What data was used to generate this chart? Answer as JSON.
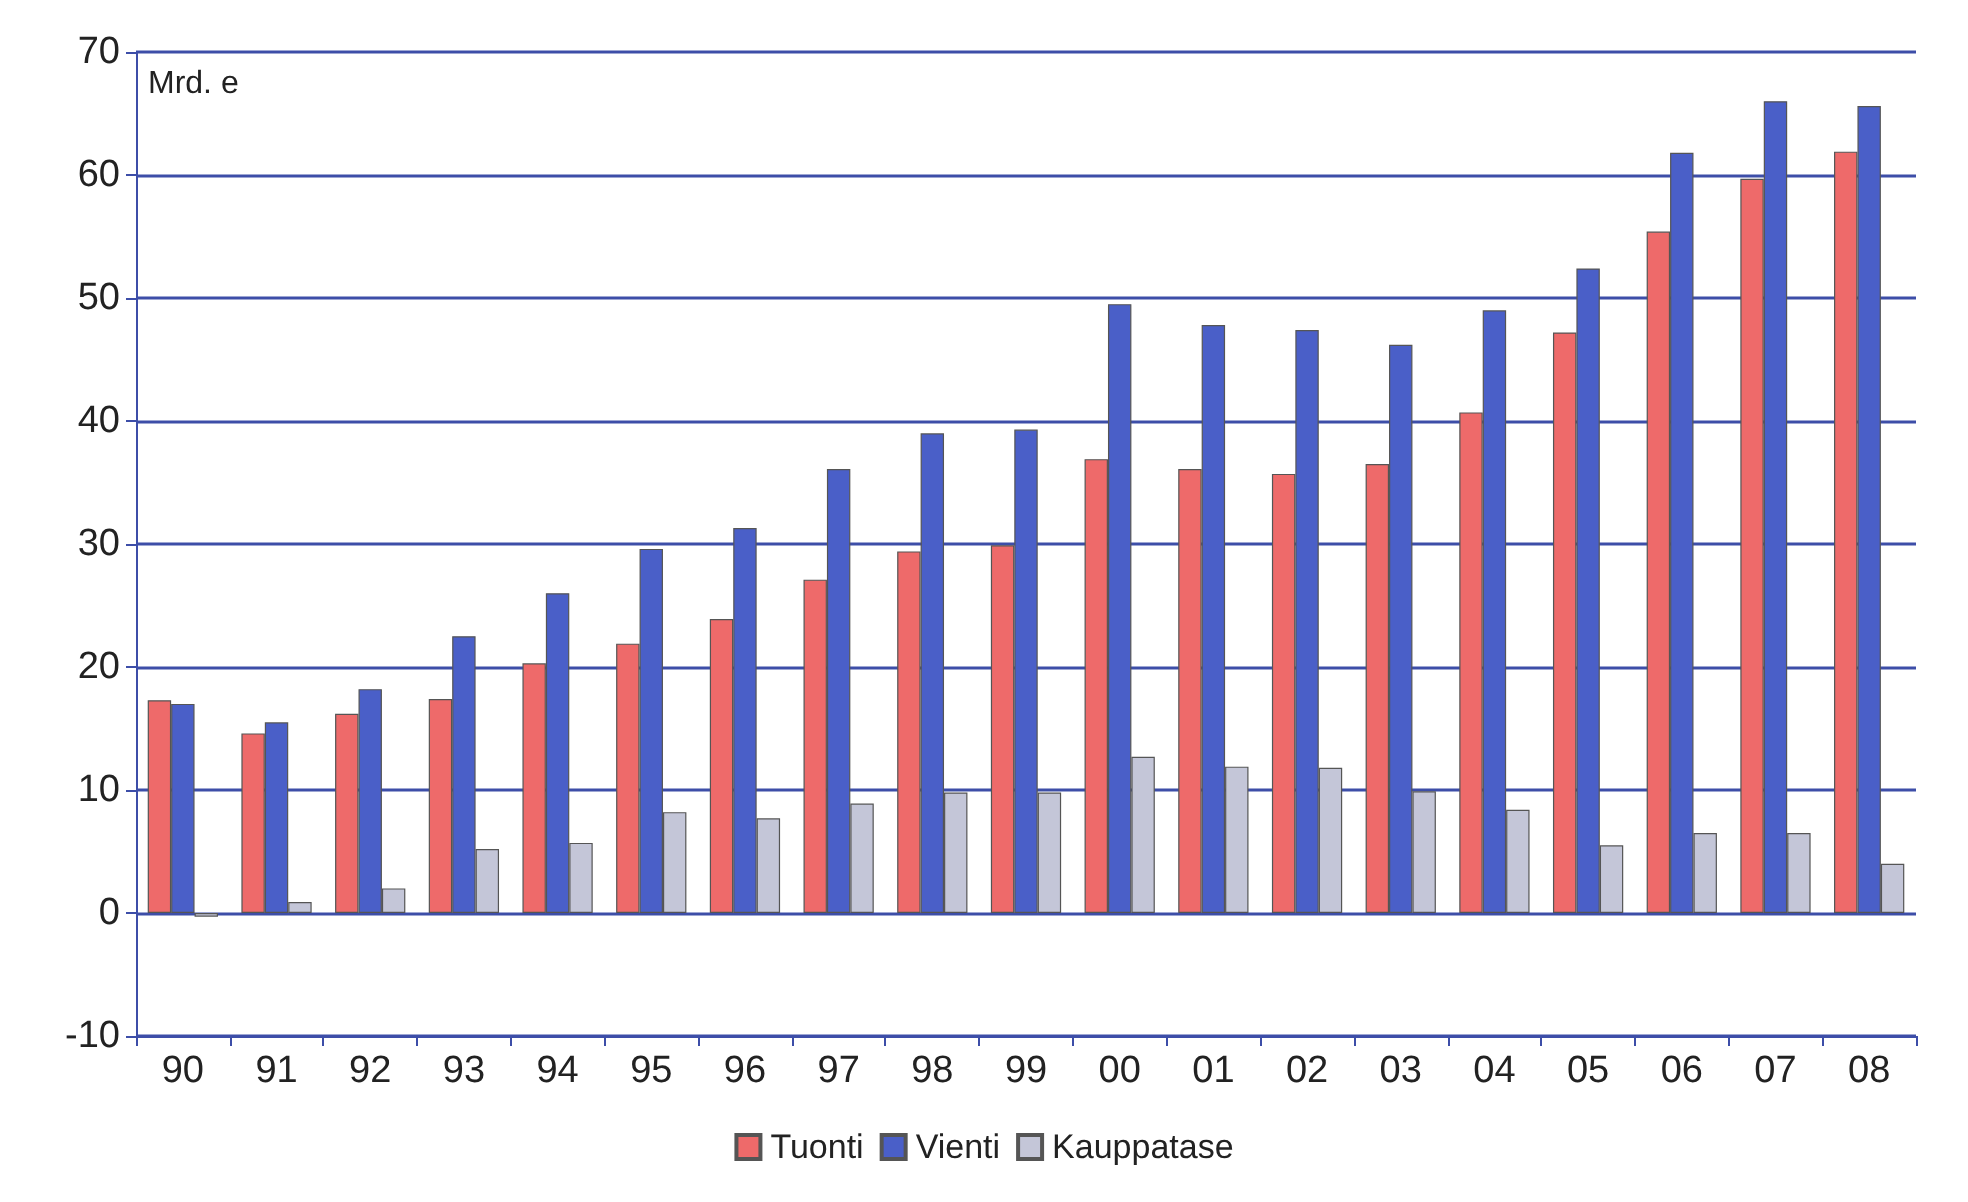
{
  "chart_data": {
    "type": "bar",
    "ylabel": "Mrd. e",
    "categories": [
      "90",
      "91",
      "92",
      "93",
      "94",
      "95",
      "96",
      "97",
      "98",
      "99",
      "00",
      "01",
      "02",
      "03",
      "04",
      "05",
      "06",
      "07",
      "08"
    ],
    "series": [
      {
        "name": "Tuonti",
        "color": "#ee6a6a",
        "values": [
          17.3,
          14.6,
          16.2,
          17.4,
          20.3,
          21.9,
          23.9,
          27.1,
          29.4,
          29.9,
          36.9,
          36.1,
          35.7,
          36.5,
          40.7,
          47.2,
          55.4,
          59.7,
          61.9
        ]
      },
      {
        "name": "Vienti",
        "color": "#4a5fc8",
        "values": [
          17.0,
          15.5,
          18.2,
          22.5,
          26.0,
          29.6,
          31.3,
          36.1,
          39.0,
          39.3,
          49.5,
          47.8,
          47.4,
          46.2,
          49.0,
          52.4,
          61.8,
          66.0,
          65.6
        ]
      },
      {
        "name": "Kauppatase",
        "color": "#c4c6d8",
        "values": [
          -0.3,
          0.9,
          2.0,
          5.2,
          5.7,
          8.2,
          7.7,
          8.9,
          9.8,
          9.8,
          12.7,
          11.9,
          11.8,
          9.9,
          8.4,
          5.5,
          6.5,
          6.5,
          4.0
        ]
      }
    ],
    "ylim": [
      -10,
      70
    ],
    "yticks": [
      -10,
      0,
      10,
      20,
      30,
      40,
      50,
      60,
      70
    ],
    "grid": "y",
    "legend": "bottom"
  }
}
